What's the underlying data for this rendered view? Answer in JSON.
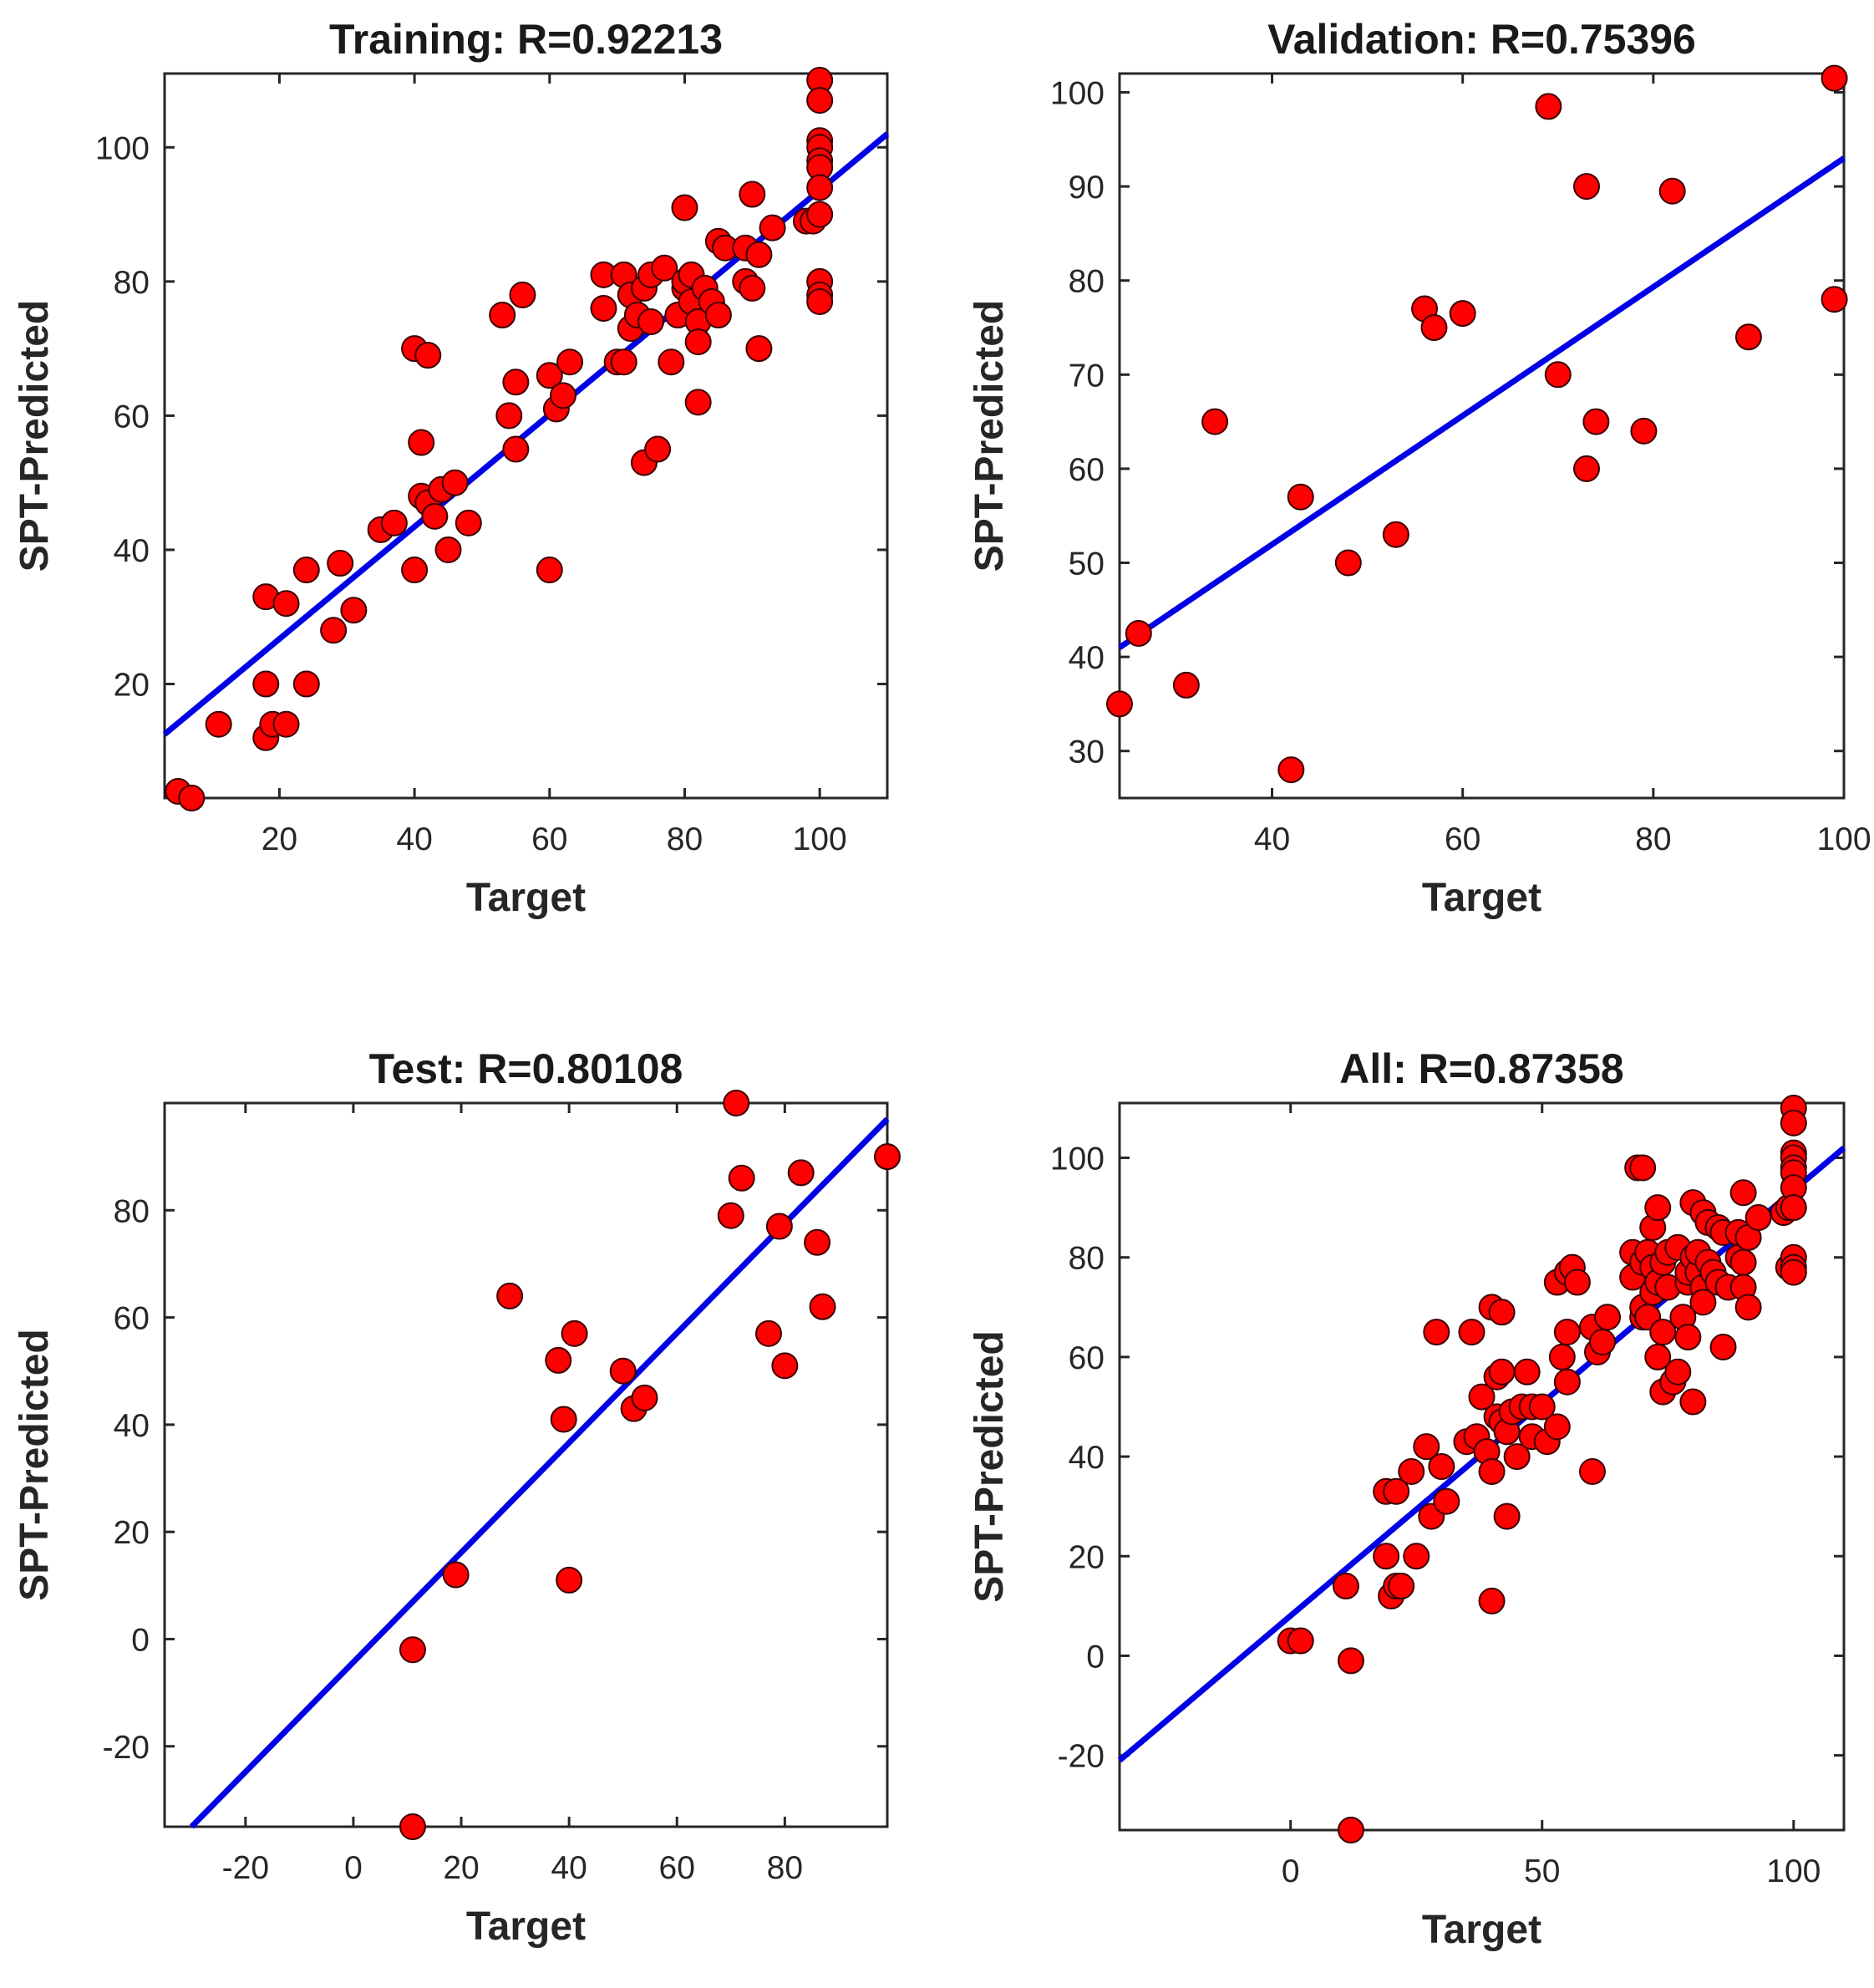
{
  "chart_data": [
    {
      "type": "scatter",
      "title": "Training: R=0.92213",
      "xlabel": "Target",
      "ylabel": "SPT-Predicted",
      "xlim": [
        3,
        110
      ],
      "ylim": [
        3,
        111
      ],
      "xticks": [
        20,
        40,
        60,
        80,
        100
      ],
      "yticks": [
        20,
        40,
        60,
        80,
        100
      ],
      "fit_line": [
        [
          3,
          12.5
        ],
        [
          110,
          102
        ]
      ],
      "marker_color": "#ff0000",
      "line_color": "#0000e6",
      "points": [
        [
          5,
          4
        ],
        [
          7,
          3
        ],
        [
          11,
          14
        ],
        [
          18,
          33
        ],
        [
          18,
          20
        ],
        [
          18,
          12
        ],
        [
          19,
          14
        ],
        [
          21,
          32
        ],
        [
          21,
          14
        ],
        [
          24,
          37
        ],
        [
          24,
          20
        ],
        [
          28,
          28
        ],
        [
          29,
          38
        ],
        [
          31,
          31
        ],
        [
          35,
          43
        ],
        [
          37,
          44
        ],
        [
          40,
          37
        ],
        [
          40,
          70
        ],
        [
          41,
          56
        ],
        [
          41,
          48
        ],
        [
          42,
          47
        ],
        [
          42,
          69
        ],
        [
          43,
          45
        ],
        [
          44,
          49
        ],
        [
          45,
          40
        ],
        [
          46,
          50
        ],
        [
          48,
          44
        ],
        [
          53,
          75
        ],
        [
          54,
          60
        ],
        [
          55,
          55
        ],
        [
          55,
          65
        ],
        [
          56,
          78
        ],
        [
          60,
          66
        ],
        [
          60,
          37
        ],
        [
          61,
          61
        ],
        [
          62,
          63
        ],
        [
          63,
          68
        ],
        [
          68,
          81
        ],
        [
          68,
          76
        ],
        [
          70,
          68
        ],
        [
          71,
          68
        ],
        [
          71,
          81
        ],
        [
          72,
          73
        ],
        [
          72,
          78
        ],
        [
          73,
          75
        ],
        [
          74,
          53
        ],
        [
          74,
          79
        ],
        [
          75,
          74
        ],
        [
          75,
          81
        ],
        [
          76,
          55
        ],
        [
          77,
          82
        ],
        [
          78,
          68
        ],
        [
          79,
          75
        ],
        [
          80,
          91
        ],
        [
          80,
          79
        ],
        [
          80,
          80
        ],
        [
          81,
          77
        ],
        [
          81,
          81
        ],
        [
          82,
          74
        ],
        [
          82,
          71
        ],
        [
          82,
          62
        ],
        [
          83,
          79
        ],
        [
          84,
          77
        ],
        [
          85,
          75
        ],
        [
          85,
          86
        ],
        [
          86,
          85
        ],
        [
          89,
          80
        ],
        [
          89,
          85
        ],
        [
          90,
          79
        ],
        [
          90,
          93
        ],
        [
          91,
          70
        ],
        [
          91,
          84
        ],
        [
          93,
          88
        ],
        [
          98,
          89
        ],
        [
          99,
          89
        ],
        [
          100,
          110
        ],
        [
          100,
          107
        ],
        [
          100,
          101
        ],
        [
          100,
          100
        ],
        [
          100,
          98
        ],
        [
          100,
          97
        ],
        [
          100,
          94
        ],
        [
          100,
          90
        ],
        [
          100,
          80
        ],
        [
          100,
          78
        ],
        [
          100,
          77
        ]
      ]
    },
    {
      "type": "scatter",
      "title": "Validation: R=0.75396",
      "xlabel": "Target",
      "ylabel": "SPT-Predicted",
      "xlim": [
        24,
        100
      ],
      "ylim": [
        25,
        102
      ],
      "xticks": [
        40,
        60,
        80,
        100
      ],
      "yticks": [
        30,
        40,
        50,
        60,
        70,
        80,
        90,
        100
      ],
      "fit_line": [
        [
          24,
          41
        ],
        [
          100,
          93
        ]
      ],
      "marker_color": "#ff0000",
      "line_color": "#0000e6",
      "points": [
        [
          24,
          35
        ],
        [
          26,
          42.5
        ],
        [
          31,
          37
        ],
        [
          34,
          65
        ],
        [
          42,
          28
        ],
        [
          43,
          57
        ],
        [
          48,
          50
        ],
        [
          53,
          53
        ],
        [
          56,
          77
        ],
        [
          57,
          75
        ],
        [
          60,
          76.5
        ],
        [
          69,
          98.5
        ],
        [
          70,
          70
        ],
        [
          73,
          90
        ],
        [
          73,
          60
        ],
        [
          74,
          65
        ],
        [
          79,
          64
        ],
        [
          82,
          89.5
        ],
        [
          90,
          74
        ],
        [
          99,
          78
        ],
        [
          99,
          101.5
        ]
      ]
    },
    {
      "type": "scatter",
      "title": "Test: R=0.80108",
      "xlabel": "Target",
      "ylabel": "SPT-Predicted",
      "xlim": [
        -35,
        99
      ],
      "ylim": [
        -35,
        100
      ],
      "xticks": [
        -20,
        0,
        20,
        40,
        60,
        80
      ],
      "yticks": [
        -20,
        0,
        20,
        40,
        60,
        80
      ],
      "fit_line": [
        [
          -30,
          -35
        ],
        [
          99,
          97
        ]
      ],
      "marker_color": "#ff0000",
      "line_color": "#0000e6",
      "points": [
        [
          11,
          -2
        ],
        [
          11,
          -35
        ],
        [
          19,
          12
        ],
        [
          29,
          64
        ],
        [
          38,
          52
        ],
        [
          39,
          41
        ],
        [
          40,
          11
        ],
        [
          41,
          57
        ],
        [
          50,
          50
        ],
        [
          52,
          43
        ],
        [
          54,
          45
        ],
        [
          70,
          79
        ],
        [
          71,
          100
        ],
        [
          72,
          86
        ],
        [
          77,
          57
        ],
        [
          79,
          77
        ],
        [
          80,
          51
        ],
        [
          83,
          87
        ],
        [
          86,
          74
        ],
        [
          87,
          62
        ],
        [
          99,
          90
        ]
      ]
    },
    {
      "type": "scatter",
      "title": "All: R=0.87358",
      "xlabel": "Target",
      "ylabel": "SPT-Predicted",
      "xlim": [
        -34,
        110
      ],
      "ylim": [
        -35,
        111
      ],
      "xticks": [
        0,
        50,
        100
      ],
      "yticks": [
        -20,
        0,
        20,
        40,
        60,
        80,
        100
      ],
      "fit_line": [
        [
          -34,
          -21
        ],
        [
          110,
          102
        ]
      ],
      "marker_color": "#ff0000",
      "line_color": "#0000e6",
      "points": [
        [
          0,
          3
        ],
        [
          2,
          3
        ],
        [
          11,
          14
        ],
        [
          12,
          -1
        ],
        [
          12,
          -35
        ],
        [
          19,
          33
        ],
        [
          19,
          20
        ],
        [
          20,
          12
        ],
        [
          21,
          14
        ],
        [
          21,
          33
        ],
        [
          22,
          14
        ],
        [
          24,
          37
        ],
        [
          25,
          20
        ],
        [
          27,
          42
        ],
        [
          28,
          28
        ],
        [
          29,
          65
        ],
        [
          30,
          38
        ],
        [
          31,
          31
        ],
        [
          35,
          43
        ],
        [
          36,
          65
        ],
        [
          37,
          44
        ],
        [
          38,
          52
        ],
        [
          39,
          41
        ],
        [
          40,
          11
        ],
        [
          40,
          37
        ],
        [
          40,
          70
        ],
        [
          41,
          56
        ],
        [
          41,
          48
        ],
        [
          42,
          47
        ],
        [
          42,
          57
        ],
        [
          42,
          69
        ],
        [
          43,
          45
        ],
        [
          43,
          28
        ],
        [
          44,
          49
        ],
        [
          45,
          40
        ],
        [
          46,
          50
        ],
        [
          47,
          57
        ],
        [
          48,
          44
        ],
        [
          48,
          50
        ],
        [
          50,
          50
        ],
        [
          51,
          43
        ],
        [
          53,
          75
        ],
        [
          53,
          46
        ],
        [
          54,
          60
        ],
        [
          55,
          55
        ],
        [
          55,
          65
        ],
        [
          55,
          77
        ],
        [
          56,
          78
        ],
        [
          57,
          75
        ],
        [
          60,
          37
        ],
        [
          60,
          66
        ],
        [
          61,
          61
        ],
        [
          62,
          63
        ],
        [
          63,
          68
        ],
        [
          68,
          81
        ],
        [
          68,
          76
        ],
        [
          69,
          98
        ],
        [
          70,
          98
        ],
        [
          70,
          68
        ],
        [
          70,
          70
        ],
        [
          70,
          79
        ],
        [
          71,
          68
        ],
        [
          71,
          81
        ],
        [
          72,
          73
        ],
        [
          72,
          78
        ],
        [
          72,
          86
        ],
        [
          73,
          75
        ],
        [
          73,
          90
        ],
        [
          73,
          60
        ],
        [
          74,
          53
        ],
        [
          74,
          65
        ],
        [
          74,
          79
        ],
        [
          75,
          74
        ],
        [
          75,
          81
        ],
        [
          76,
          55
        ],
        [
          77,
          82
        ],
        [
          77,
          57
        ],
        [
          78,
          68
        ],
        [
          79,
          64
        ],
        [
          79,
          75
        ],
        [
          79,
          77
        ],
        [
          80,
          91
        ],
        [
          80,
          80
        ],
        [
          80,
          51
        ],
        [
          81,
          77
        ],
        [
          81,
          81
        ],
        [
          82,
          74
        ],
        [
          82,
          71
        ],
        [
          82,
          89
        ],
        [
          83,
          79
        ],
        [
          83,
          87
        ],
        [
          84,
          77
        ],
        [
          85,
          75
        ],
        [
          85,
          86
        ],
        [
          86,
          62
        ],
        [
          86,
          85
        ],
        [
          87,
          74
        ],
        [
          89,
          80
        ],
        [
          89,
          85
        ],
        [
          90,
          79
        ],
        [
          90,
          74
        ],
        [
          90,
          93
        ],
        [
          91,
          70
        ],
        [
          91,
          84
        ],
        [
          93,
          88
        ],
        [
          98,
          89
        ],
        [
          99,
          78
        ],
        [
          99,
          90
        ],
        [
          100,
          110
        ],
        [
          100,
          107
        ],
        [
          100,
          101
        ],
        [
          100,
          100
        ],
        [
          100,
          98
        ],
        [
          100,
          97
        ],
        [
          100,
          94
        ],
        [
          100,
          90
        ],
        [
          100,
          80
        ],
        [
          100,
          78
        ],
        [
          100,
          77
        ]
      ]
    }
  ]
}
